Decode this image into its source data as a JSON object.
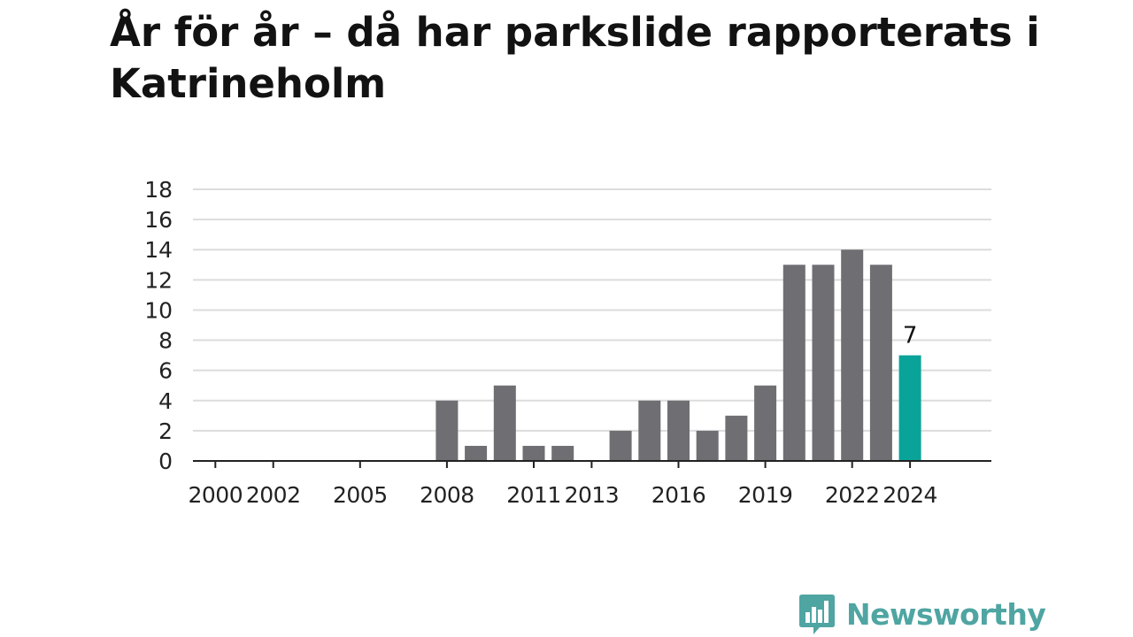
{
  "title": "År för år – då har parkslide rapporterats i Katrineholm",
  "brand": {
    "name": "Newsworthy",
    "logo_icon": "newsworthy-bars-icon"
  },
  "colors": {
    "bar": "#6e6e73",
    "highlight": "#0aa399",
    "grid": "#dcdcdc",
    "axis": "#222222",
    "brand": "#4fa5a2"
  },
  "chart_data": {
    "type": "bar",
    "categories": [
      "2000",
      "2001",
      "2002",
      "2003",
      "2004",
      "2005",
      "2006",
      "2007",
      "2008",
      "2009",
      "2010",
      "2011",
      "2012",
      "2013",
      "2014",
      "2015",
      "2016",
      "2017",
      "2018",
      "2019",
      "2020",
      "2021",
      "2022",
      "2023",
      "2024"
    ],
    "values": [
      0,
      0,
      0,
      0,
      0,
      0,
      0,
      0,
      4,
      1,
      5,
      1,
      1,
      0,
      2,
      4,
      4,
      2,
      3,
      5,
      13,
      13,
      14,
      13,
      7
    ],
    "tick_labels": [
      "2000",
      "2002",
      "2005",
      "2008",
      "2011",
      "2013",
      "2016",
      "2019",
      "2022",
      "2024"
    ],
    "highlight_index": 24,
    "data_labels": [
      {
        "index": 24,
        "text": "7"
      }
    ],
    "yticks": [
      0,
      2,
      4,
      6,
      8,
      10,
      12,
      14,
      16,
      18
    ],
    "ylim": [
      0,
      18
    ],
    "grid": true,
    "xlabel": "",
    "ylabel": ""
  }
}
